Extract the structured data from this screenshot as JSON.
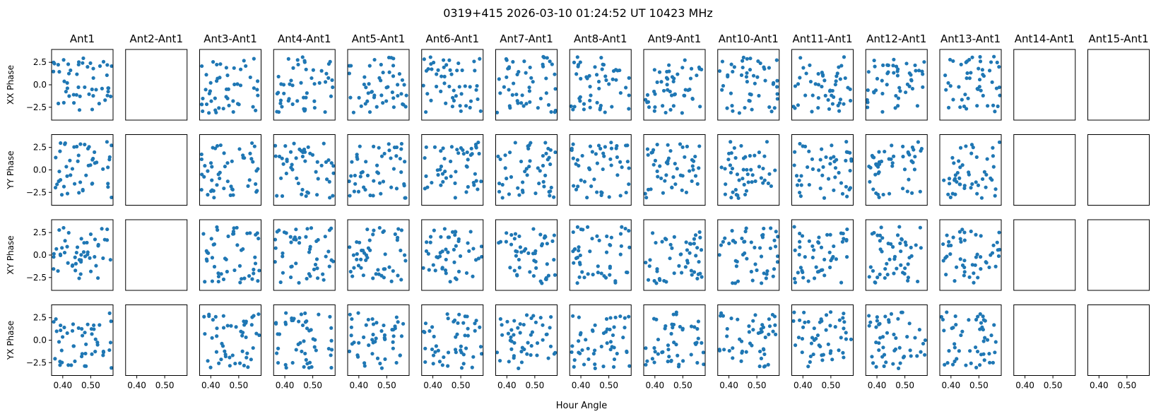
{
  "figure": {
    "title": "0319+415  2026-03-10 01:24:52 UT  10423 MHz",
    "xlabel": "Hour Angle"
  },
  "chart_data": {
    "type": "scatter",
    "grid": false,
    "marker_color": "#1f77b4",
    "xlim": [
      0.36,
      0.58
    ],
    "ylim": [
      -3.93,
      3.93
    ],
    "x_tick_values": [
      0.4,
      0.5
    ],
    "x_tick_labels": [
      "0.40",
      "0.50"
    ],
    "y_tick_values": [
      2.5,
      0.0,
      -2.5
    ],
    "y_tick_labels": [
      "2.5",
      "0.0",
      "−2.5"
    ],
    "columns": [
      "Ant1",
      "Ant2-Ant1",
      "Ant3-Ant1",
      "Ant4-Ant1",
      "Ant5-Ant1",
      "Ant6-Ant1",
      "Ant7-Ant1",
      "Ant8-Ant1",
      "Ant9-Ant1",
      "Ant10-Ant1",
      "Ant11-Ant1",
      "Ant12-Ant1",
      "Ant13-Ant1",
      "Ant14-Ant1",
      "Ant15-Ant1"
    ],
    "rows": [
      "XX Phase",
      "YY Phase",
      "XY Phase",
      "YX Phase"
    ],
    "empty_columns": [
      "Ant2-Ant1",
      "Ant14-Ant1",
      "Ant15-Ant1"
    ],
    "points_per_panel": 50,
    "x_range_of_samples": [
      0.365,
      0.575
    ],
    "phase_range_of_samples": [
      -3.14,
      3.14
    ]
  }
}
